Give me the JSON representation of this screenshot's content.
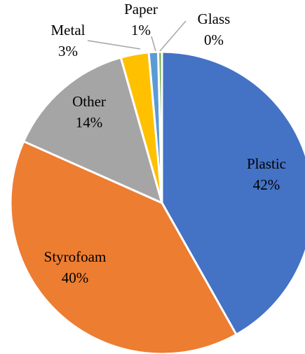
{
  "chart_data": {
    "type": "pie",
    "title": "",
    "slices": [
      {
        "label": "Plastic",
        "value": 42,
        "display": "42%",
        "color": "#4472C4"
      },
      {
        "label": "Styrofoam",
        "value": 40,
        "display": "40%",
        "color": "#ED7D31"
      },
      {
        "label": "Other",
        "value": 14,
        "display": "14%",
        "color": "#A5A5A5"
      },
      {
        "label": "Metal",
        "value": 3,
        "display": "3%",
        "color": "#FFC000"
      },
      {
        "label": "Paper",
        "value": 1,
        "display": "1%",
        "color": "#5B9BD5"
      },
      {
        "label": "Glass",
        "value": 0.4,
        "display": "0%",
        "color": "#70AD47"
      }
    ],
    "legend": "none",
    "slice_border_color": "#FFFFFF",
    "leader_line_color": "#A6A6A6"
  }
}
